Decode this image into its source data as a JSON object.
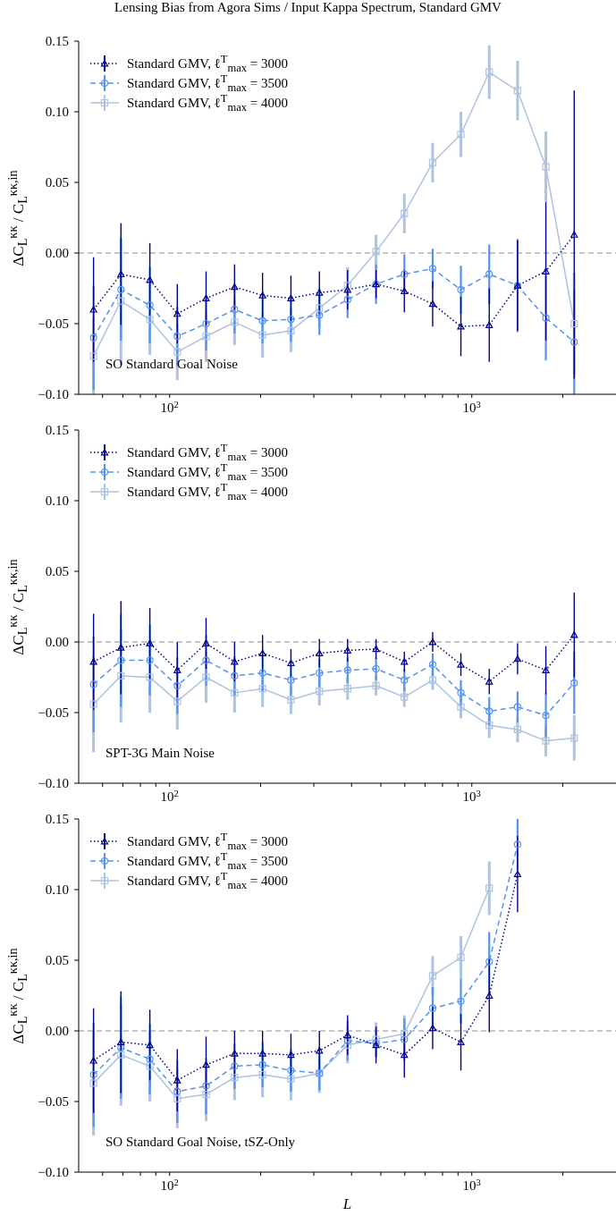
{
  "chart_data": [
    {
      "type": "line",
      "title": "Lensing Bias from Agora Sims / Input Kappa Spectrum, Standard GMV",
      "ylabel": "ΔC$_{L}$$^{κκ}$ / C$_{L}$$^{κκ,in}$",
      "annotations": [
        "SO Standard Goal Noise"
      ],
      "legend": "top left",
      "log": "x",
      "x": [
        56,
        69,
        86,
        106,
        132,
        164,
        203,
        252,
        313,
        388,
        482,
        598,
        742,
        920,
        1142,
        1417,
        1758,
        2182
      ],
      "xlim": [
        50,
        3000
      ],
      "xticks": [
        {
          "value": 60,
          "label": null
        },
        {
          "value": 70,
          "label": null
        },
        {
          "value": 80,
          "label": null
        },
        {
          "value": 90,
          "label": null
        },
        {
          "value": 100,
          "label": "10$^{2}$"
        },
        {
          "value": 200,
          "label": null
        },
        {
          "value": 300,
          "label": null
        },
        {
          "value": 400,
          "label": null
        },
        {
          "value": 500,
          "label": null
        },
        {
          "value": 600,
          "label": null
        },
        {
          "value": 700,
          "label": null
        },
        {
          "value": 800,
          "label": null
        },
        {
          "value": 900,
          "label": null
        },
        {
          "value": 1000,
          "label": "10$^{3}$"
        },
        {
          "value": 2000,
          "label": null
        }
      ],
      "ylim": [
        -0.1,
        0.15
      ],
      "yticks": [
        {
          "value": -0.1,
          "label": "−0.10"
        },
        {
          "value": -0.05,
          "label": "−0.05"
        },
        {
          "value": 0,
          "label": "0.00"
        },
        {
          "value": 0.05,
          "label": "0.05"
        },
        {
          "value": 0.1,
          "label": "0.10"
        },
        {
          "value": 0.15,
          "label": "0.15"
        }
      ],
      "ref_lines": [
        {
          "axis": "y",
          "value": 0,
          "color": "#b3b3b3",
          "line_style": "dashed"
        }
      ],
      "series": [
        {
          "name": "Standard GMV, ℓ$^{T}$$_{max}$ = 3000",
          "color": "#00008b",
          "marker": "triangle",
          "line_style": "dotted",
          "values": [
            -0.04,
            -0.015,
            -0.019,
            -0.043,
            -0.032,
            -0.024,
            -0.03,
            -0.032,
            -0.028,
            -0.026,
            -0.022,
            -0.027,
            -0.036,
            -0.052,
            -0.051,
            -0.023,
            -0.013,
            0.013
          ],
          "errors": [
            0.037,
            0.036,
            0.026,
            0.021,
            0.019,
            0.016,
            0.016,
            0.016,
            0.015,
            0.014,
            0.01,
            0.015,
            0.016,
            0.021,
            0.026,
            0.032,
            0.049,
            0.102
          ]
        },
        {
          "name": "Standard GMV, ℓ$^{T}$$_{max}$ = 3500",
          "color": "#5593ef",
          "marker": "circle",
          "line_style": "dashed",
          "values": [
            -0.06,
            -0.026,
            -0.037,
            -0.059,
            -0.05,
            -0.04,
            -0.048,
            -0.047,
            -0.044,
            -0.033,
            -0.022,
            -0.015,
            -0.011,
            -0.026,
            -0.015,
            -0.023,
            -0.046,
            -0.063
          ],
          "errors": [
            0.037,
            0.036,
            0.027,
            0.021,
            0.019,
            0.017,
            0.016,
            0.016,
            0.014,
            0.013,
            0.014,
            0.014,
            0.014,
            0.017,
            0.021,
            0.033,
            0.03,
            0.037
          ]
        },
        {
          "name": "Standard GMV, ℓ$^{T}$$_{max}$ = 4000",
          "color": "#adc3e0",
          "marker": "square",
          "line_style": "solid",
          "values": [
            -0.073,
            -0.034,
            -0.047,
            -0.07,
            -0.059,
            -0.049,
            -0.058,
            -0.055,
            -0.039,
            -0.023,
            0.001,
            0.028,
            0.064,
            0.084,
            0.128,
            0.115,
            0.061,
            -0.05
          ],
          "errors": [
            0.027,
            0.045,
            0.025,
            0.02,
            0.018,
            0.016,
            0.016,
            0.015,
            0.014,
            0.013,
            0.012,
            0.014,
            0.014,
            0.016,
            0.019,
            0.021,
            0.025,
            0.036
          ]
        }
      ]
    },
    {
      "type": "line",
      "ylabel": "ΔC$_{L}$$^{κκ}$ / C$_{L}$$^{κκ,in}$",
      "annotations": [
        "SPT-3G Main Noise"
      ],
      "legend": "top left",
      "log": "x",
      "x": [
        56,
        69,
        86,
        106,
        132,
        164,
        203,
        252,
        313,
        388,
        482,
        598,
        742,
        920,
        1142,
        1417,
        1758,
        2182
      ],
      "xlim": [
        50,
        3000
      ],
      "xticks": [
        {
          "value": 60,
          "label": null
        },
        {
          "value": 70,
          "label": null
        },
        {
          "value": 80,
          "label": null
        },
        {
          "value": 90,
          "label": null
        },
        {
          "value": 100,
          "label": "10$^{2}$"
        },
        {
          "value": 200,
          "label": null
        },
        {
          "value": 300,
          "label": null
        },
        {
          "value": 400,
          "label": null
        },
        {
          "value": 500,
          "label": null
        },
        {
          "value": 600,
          "label": null
        },
        {
          "value": 700,
          "label": null
        },
        {
          "value": 800,
          "label": null
        },
        {
          "value": 900,
          "label": null
        },
        {
          "value": 1000,
          "label": "10$^{3}$"
        },
        {
          "value": 2000,
          "label": null
        }
      ],
      "ylim": [
        -0.1,
        0.15
      ],
      "yticks": [
        {
          "value": -0.1,
          "label": "−0.10"
        },
        {
          "value": -0.05,
          "label": "−0.05"
        },
        {
          "value": 0,
          "label": "0.00"
        },
        {
          "value": 0.05,
          "label": "0.05"
        },
        {
          "value": 0.1,
          "label": "0.10"
        },
        {
          "value": 0.15,
          "label": "0.15"
        }
      ],
      "ref_lines": [
        {
          "axis": "y",
          "value": 0,
          "color": "#b3b3b3",
          "line_style": "dashed"
        }
      ],
      "series": [
        {
          "name": "Standard GMV, ℓ$^{T}$$_{max}$ = 3000",
          "color": "#00008b",
          "marker": "triangle",
          "line_style": "dotted",
          "values": [
            -0.014,
            -0.004,
            -0.001,
            -0.02,
            -0.001,
            -0.014,
            -0.008,
            -0.015,
            -0.008,
            -0.006,
            -0.005,
            -0.014,
            0.0,
            -0.016,
            -0.028,
            -0.012,
            -0.02,
            0.005
          ],
          "errors": [
            0.034,
            0.033,
            0.025,
            0.02,
            0.018,
            0.014,
            0.013,
            0.01,
            0.01,
            0.008,
            0.007,
            0.007,
            0.007,
            0.008,
            0.009,
            0.011,
            0.017,
            0.03
          ]
        },
        {
          "name": "Standard GMV, ℓ$^{T}$$_{max}$ = 3500",
          "color": "#5593ef",
          "marker": "circle",
          "line_style": "dashed",
          "values": [
            -0.03,
            -0.013,
            -0.013,
            -0.031,
            -0.013,
            -0.024,
            -0.022,
            -0.027,
            -0.022,
            -0.02,
            -0.019,
            -0.027,
            -0.016,
            -0.036,
            -0.049,
            -0.046,
            -0.052,
            -0.029
          ],
          "errors": [
            0.034,
            0.033,
            0.025,
            0.02,
            0.018,
            0.014,
            0.013,
            0.011,
            0.01,
            0.009,
            0.008,
            0.008,
            0.008,
            0.009,
            0.01,
            0.011,
            0.016,
            0.022
          ]
        },
        {
          "name": "Standard GMV, ℓ$^{T}$$_{max}$ = 4000",
          "color": "#adc3e0",
          "marker": "square",
          "line_style": "solid",
          "values": [
            -0.044,
            -0.024,
            -0.025,
            -0.042,
            -0.025,
            -0.036,
            -0.033,
            -0.041,
            -0.035,
            -0.033,
            -0.031,
            -0.039,
            -0.027,
            -0.046,
            -0.059,
            -0.062,
            -0.07,
            -0.068
          ],
          "errors": [
            0.034,
            0.033,
            0.025,
            0.02,
            0.018,
            0.014,
            0.013,
            0.01,
            0.01,
            0.008,
            0.007,
            0.007,
            0.007,
            0.008,
            0.009,
            0.009,
            0.011,
            0.016
          ]
        }
      ]
    },
    {
      "type": "line",
      "xlabel": "L",
      "ylabel": "ΔC$_{L}$$^{κκ}$ / C$_{L}$$^{κκ,in}$",
      "annotations": [
        "SO Standard Goal Noise, tSZ-Only"
      ],
      "legend": "top left",
      "log": "x",
      "x": [
        56,
        69,
        86,
        106,
        132,
        164,
        203,
        252,
        313,
        388,
        482,
        598,
        742,
        920,
        1142,
        1417
      ],
      "xlim": [
        50,
        3000
      ],
      "xticks": [
        {
          "value": 60,
          "label": null
        },
        {
          "value": 70,
          "label": null
        },
        {
          "value": 80,
          "label": null
        },
        {
          "value": 90,
          "label": null
        },
        {
          "value": 100,
          "label": "10$^{2}$"
        },
        {
          "value": 200,
          "label": null
        },
        {
          "value": 300,
          "label": null
        },
        {
          "value": 400,
          "label": null
        },
        {
          "value": 500,
          "label": null
        },
        {
          "value": 600,
          "label": null
        },
        {
          "value": 700,
          "label": null
        },
        {
          "value": 800,
          "label": null
        },
        {
          "value": 900,
          "label": null
        },
        {
          "value": 1000,
          "label": "10$^{3}$"
        },
        {
          "value": 2000,
          "label": null
        }
      ],
      "ylim": [
        -0.1,
        0.15
      ],
      "yticks": [
        {
          "value": -0.1,
          "label": "−0.10"
        },
        {
          "value": -0.05,
          "label": "−0.05"
        },
        {
          "value": 0,
          "label": "0.00"
        },
        {
          "value": 0.05,
          "label": "0.05"
        },
        {
          "value": 0.1,
          "label": "0.10"
        },
        {
          "value": 0.15,
          "label": "0.15"
        }
      ],
      "ref_lines": [
        {
          "axis": "y",
          "value": 0,
          "color": "#b3b3b3",
          "line_style": "dashed"
        }
      ],
      "series": [
        {
          "name": "Standard GMV, ℓ$^{T}$$_{max}$ = 3000",
          "color": "#00008b",
          "marker": "triangle",
          "line_style": "dotted",
          "values": [
            -0.021,
            -0.008,
            -0.01,
            -0.035,
            -0.024,
            -0.016,
            -0.016,
            -0.017,
            -0.014,
            -0.003,
            -0.01,
            -0.017,
            0.002,
            -0.008,
            0.025,
            0.111
          ],
          "errors": [
            0.037,
            0.036,
            0.025,
            0.022,
            0.02,
            0.016,
            0.016,
            0.015,
            0.014,
            0.014,
            0.013,
            0.016,
            0.015,
            0.02,
            0.026,
            0.027
          ]
        },
        {
          "name": "Standard GMV, ℓ$^{T}$$_{max}$ = 3500",
          "color": "#5593ef",
          "marker": "circle",
          "line_style": "dashed",
          "values": [
            -0.031,
            -0.012,
            -0.02,
            -0.043,
            -0.039,
            -0.025,
            -0.024,
            -0.028,
            -0.03,
            -0.007,
            -0.009,
            -0.006,
            0.016,
            0.021,
            0.049,
            0.132
          ],
          "errors": [
            0.037,
            0.036,
            0.025,
            0.022,
            0.02,
            0.016,
            0.016,
            0.015,
            0.012,
            0.014,
            0.01,
            0.015,
            0.015,
            0.016,
            0.021,
            0.018
          ]
        },
        {
          "name": "Standard GMV, ℓ$^{T}$$_{max}$ = 4000",
          "color": "#adc3e0",
          "marker": "square",
          "line_style": "solid",
          "values": [
            -0.037,
            -0.017,
            -0.025,
            -0.048,
            -0.045,
            -0.033,
            -0.031,
            -0.034,
            -0.03,
            -0.01,
            -0.006,
            -0.002,
            0.039,
            0.052,
            0.101,
            null
          ],
          "errors": [
            0.037,
            0.036,
            0.025,
            0.021,
            0.019,
            0.016,
            0.016,
            0.015,
            0.014,
            0.013,
            0.012,
            0.013,
            0.014,
            0.015,
            0.019,
            null
          ]
        }
      ]
    }
  ]
}
